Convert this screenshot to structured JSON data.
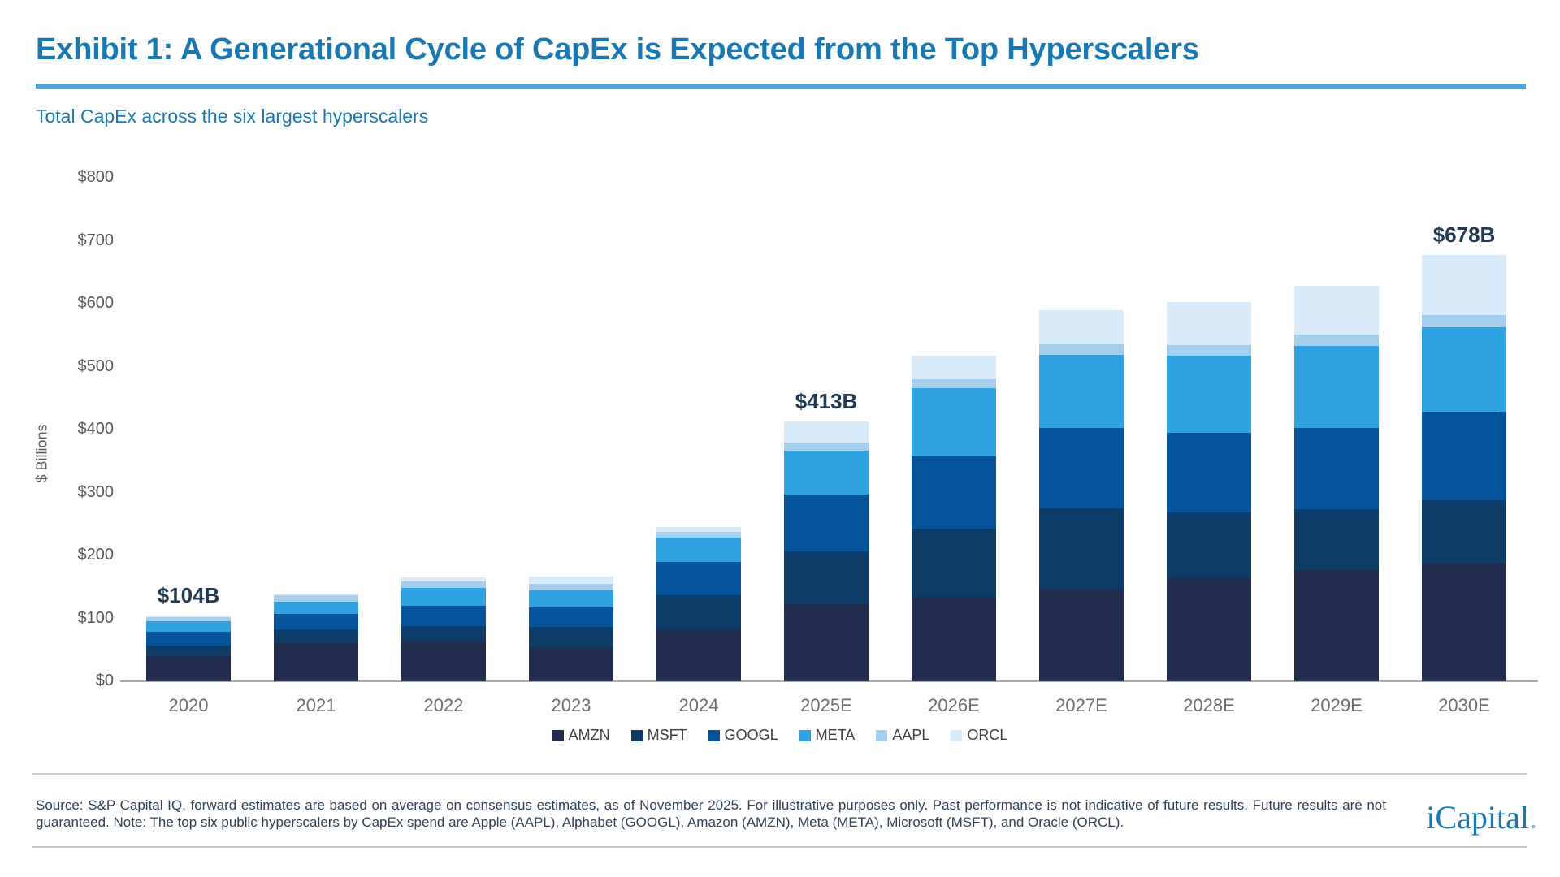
{
  "header": {
    "title": "Exhibit 1: A Generational Cycle of CapEx is Expected from the Top Hyperscalers",
    "subtitle": "Total CapEx across the six largest hyperscalers"
  },
  "chart_data": {
    "type": "bar",
    "stacked": true,
    "title": "Total CapEx across the six largest hyperscalers",
    "xlabel": "",
    "ylabel": "$ Billions",
    "ylim": [
      0,
      800
    ],
    "grid": false,
    "legend_position": "bottom",
    "categories": [
      "2020",
      "2021",
      "2022",
      "2023",
      "2024",
      "2025E",
      "2026E",
      "2027E",
      "2028E",
      "2029E",
      "2030E"
    ],
    "series": [
      {
        "name": "AMZN",
        "color": "#212c4f",
        "values": [
          40,
          61,
          64,
          54,
          83,
          123,
          134,
          147,
          165,
          177,
          187
        ]
      },
      {
        "name": "MSFT",
        "color": "#0d3d66",
        "values": [
          17,
          21,
          24,
          33,
          54,
          83,
          108,
          128,
          103,
          97,
          101
        ]
      },
      {
        "name": "GOOGL",
        "color": "#05549b",
        "values": [
          22,
          25,
          32,
          31,
          53,
          91,
          115,
          127,
          127,
          129,
          140
        ]
      },
      {
        "name": "META",
        "color": "#2fa3e1",
        "values": [
          16,
          19,
          28,
          26,
          38,
          69,
          109,
          117,
          123,
          130,
          134
        ]
      },
      {
        "name": "AAPL",
        "color": "#a5cfec",
        "values": [
          7,
          11,
          11,
          11,
          10,
          13,
          14,
          16,
          16,
          18,
          20
        ]
      },
      {
        "name": "ORCL",
        "color": "#d9ebf8",
        "values": [
          2,
          3,
          6,
          12,
          7,
          34,
          38,
          55,
          68,
          78,
          96
        ]
      }
    ],
    "totals": [
      104,
      140,
      165,
      167,
      245,
      413,
      518,
      590,
      602,
      629,
      678
    ],
    "annotations": {
      "2020": "$104B",
      "2025E": "$413B",
      "2030E": "$678B"
    },
    "yticks": [
      {
        "value": 0,
        "label": "$0"
      },
      {
        "value": 100,
        "label": "$100"
      },
      {
        "value": 200,
        "label": "$200"
      },
      {
        "value": 300,
        "label": "$300"
      },
      {
        "value": 400,
        "label": "$400"
      },
      {
        "value": 500,
        "label": "$500"
      },
      {
        "value": 600,
        "label": "$600"
      },
      {
        "value": 700,
        "label": "$700"
      },
      {
        "value": 800,
        "label": "$800"
      }
    ]
  },
  "colors": {
    "title_blue": "#1878b2",
    "underline_blue": "#4ba6d7",
    "axis_text": "#58595b",
    "axis_line": "#a7a9ac",
    "annotation_navy": "#203a54",
    "footer_text": "#2f4157",
    "rule_gray": "#c5cfcc"
  },
  "footer": {
    "line1": "Source: S&P Capital IQ, forward estimates are based on average on consensus estimates, as of November 2025. For illustrative purposes only. Past performance is not indicative of future results. Future results are not",
    "line2": "guaranteed. Note: The top six public hyperscalers by CapEx spend are Apple (AAPL), Alphabet (GOOGL), Amazon (AMZN), Meta (META), Microsoft (MSFT), and Oracle (ORCL).",
    "logo_text": "iCapital",
    "logo_suffix": "."
  }
}
